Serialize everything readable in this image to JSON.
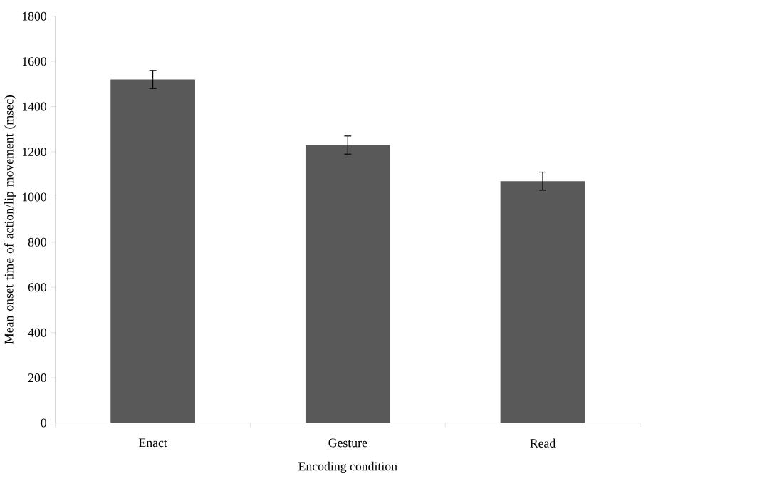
{
  "chart_data": {
    "type": "bar",
    "xlabel": "Encoding condition",
    "ylabel": "Mean onset time of action/lip movement (msec)",
    "categories": [
      "Enact",
      "Gesture",
      "Read"
    ],
    "values": [
      1520,
      1230,
      1070
    ],
    "errors": [
      40,
      40,
      40
    ],
    "color": "#595959",
    "ylim": [
      0,
      1800
    ],
    "yticks": [
      0,
      200,
      400,
      600,
      800,
      1000,
      1200,
      1400,
      1600,
      1800
    ],
    "grid": false
  }
}
